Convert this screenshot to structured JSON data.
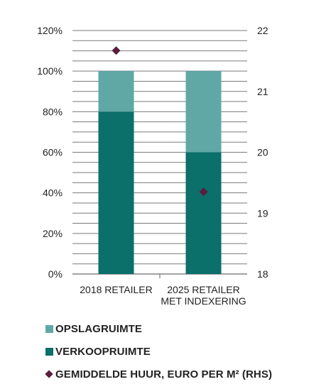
{
  "chart_data": {
    "type": "bar",
    "stacked": true,
    "categories": [
      [
        "2018 RETAILER"
      ],
      [
        "2025 RETAILER",
        "MET INDEXERING"
      ]
    ],
    "series": [
      {
        "name": "VERKOOPRUIMTE",
        "values": [
          80,
          60
        ],
        "color": "#0b6f6a"
      },
      {
        "name": "OPSLAGRUIMTE",
        "values": [
          20,
          40
        ],
        "color": "#5fa8a5"
      }
    ],
    "secondary_series": {
      "name": "GEMIDDELDE HUUR, EURO PER M² (RHS)",
      "type": "scatter",
      "marker": "diamond",
      "values": [
        21.67,
        19.35
      ],
      "color": "#5a1d3c"
    },
    "y_left": {
      "ylim": [
        0,
        120
      ],
      "ticks": [
        "0%",
        "20%",
        "40%",
        "60%",
        "80%",
        "100%",
        "120%"
      ]
    },
    "y_right": {
      "ylim": [
        18,
        22
      ],
      "ticks": [
        "18",
        "19",
        "20",
        "21",
        "22"
      ]
    },
    "grid": true,
    "legend_position": "bottom"
  },
  "legend": [
    {
      "label": "OPSLAGRUIMTE",
      "color": "#5fa8a5",
      "marker": "square"
    },
    {
      "label": "VERKOOPRUIMTE",
      "color": "#0b6f6a",
      "marker": "square"
    },
    {
      "label": "GEMIDDELDE HUUR, EURO PER M² (RHS)",
      "color": "#5a1d3c",
      "marker": "diamond"
    }
  ]
}
